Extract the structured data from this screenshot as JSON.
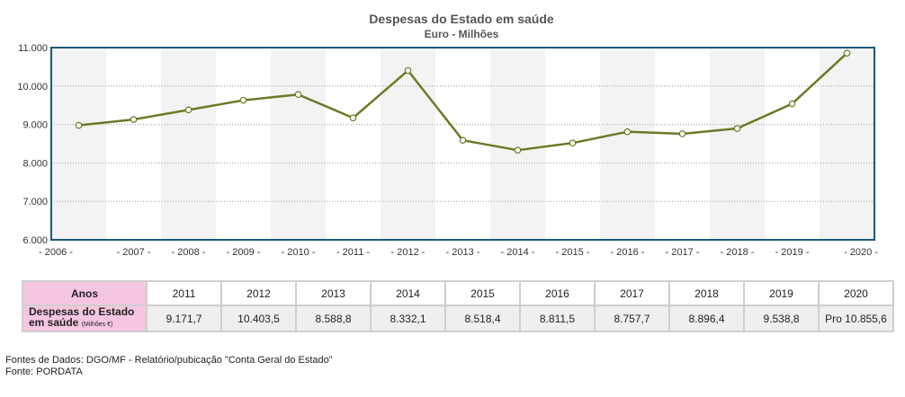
{
  "chart_data": {
    "type": "line",
    "title": "Despesas do Estado em saúde",
    "subtitle": "Euro - Milhões",
    "x": [
      "2006",
      "2007",
      "2008",
      "2009",
      "2010",
      "2011",
      "2012",
      "2013",
      "2014",
      "2015",
      "2016",
      "2017",
      "2018",
      "2019",
      "2020"
    ],
    "series": [
      {
        "values": [
          8978,
          9130,
          9380,
          9630,
          9780,
          9171.7,
          10403.5,
          8588.8,
          8332.1,
          8518.4,
          8811.5,
          8757.7,
          8896.4,
          9538.8,
          10855.6
        ]
      }
    ],
    "ylim": [
      6000,
      11000
    ],
    "y_ticks": [
      "6.000",
      "7.000",
      "8.000",
      "9.000",
      "10.000",
      "11.000"
    ],
    "x_tick_labels": [
      "- 2006 -",
      "- 2007 -",
      "- 2008 -",
      "- 2009 -",
      "- 2010 -",
      "- 2011 -",
      "- 2012 -",
      "- 2013 -",
      "- 2014 -",
      "- 2015 -",
      "- 2016 -",
      "- 2017 -",
      "- 2018 -",
      "- 2019 -",
      "- 2020 -"
    ],
    "grid": "horizontal dotted",
    "colors": {
      "line": "#6b7a25",
      "frame": "#1a5a7a",
      "band": "#f3f3f3"
    }
  },
  "table": {
    "header_label": "Anos",
    "row_label_line1": "Despesas do Estado",
    "row_label_line2": "em saúde",
    "row_label_unit": "(Milhões €)",
    "years": [
      "2011",
      "2012",
      "2013",
      "2014",
      "2015",
      "2016",
      "2017",
      "2018",
      "2019",
      "2020"
    ],
    "values": [
      "9.171,7",
      "10.403,5",
      "8.588,8",
      "8.332,1",
      "8.518,4",
      "8.811,5",
      "8.757,7",
      "8.896,4",
      "9.538,8",
      "Pro 10.855,6"
    ],
    "colors": {
      "label_bg": "#f6c6e0"
    }
  },
  "footer": {
    "sources": "Fontes de Dados: DGO/MF - Relatório/pubicação \"Conta Geral do Estado\"",
    "fonte": "Fonte: PORDATA"
  }
}
